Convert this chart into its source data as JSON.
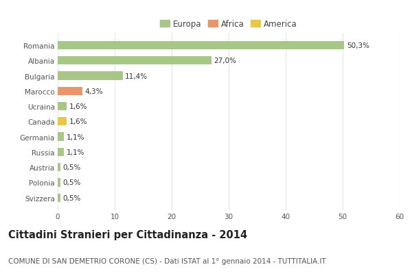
{
  "categories": [
    "Romania",
    "Albania",
    "Bulgaria",
    "Marocco",
    "Ucraina",
    "Canada",
    "Germania",
    "Russia",
    "Austria",
    "Polonia",
    "Svizzera"
  ],
  "values": [
    50.3,
    27.0,
    11.4,
    4.3,
    1.6,
    1.6,
    1.1,
    1.1,
    0.5,
    0.5,
    0.5
  ],
  "colors": [
    "#a8c687",
    "#a8c687",
    "#a8c687",
    "#e8956d",
    "#a8c687",
    "#e8c84a",
    "#a8c687",
    "#a8c687",
    "#a8c687",
    "#a8c687",
    "#a8c687"
  ],
  "labels": [
    "50,3%",
    "27,0%",
    "11,4%",
    "4,3%",
    "1,6%",
    "1,6%",
    "1,1%",
    "1,1%",
    "0,5%",
    "0,5%",
    "0,5%"
  ],
  "legend": [
    {
      "label": "Europa",
      "color": "#a8c687"
    },
    {
      "label": "Africa",
      "color": "#e8956d"
    },
    {
      "label": "America",
      "color": "#e8c84a"
    }
  ],
  "xlim": [
    0,
    60
  ],
  "xticks": [
    0,
    10,
    20,
    30,
    40,
    50,
    60
  ],
  "title": "Cittadini Stranieri per Cittadinanza - 2014",
  "subtitle": "COMUNE DI SAN DEMETRIO CORONE (CS) - Dati ISTAT al 1° gennaio 2014 - TUTTITALIA.IT",
  "background_color": "#ffffff",
  "grid_color": "#e8e8e8",
  "title_fontsize": 10.5,
  "subtitle_fontsize": 7.5,
  "label_fontsize": 7.5,
  "tick_fontsize": 7.5,
  "legend_fontsize": 8.5
}
